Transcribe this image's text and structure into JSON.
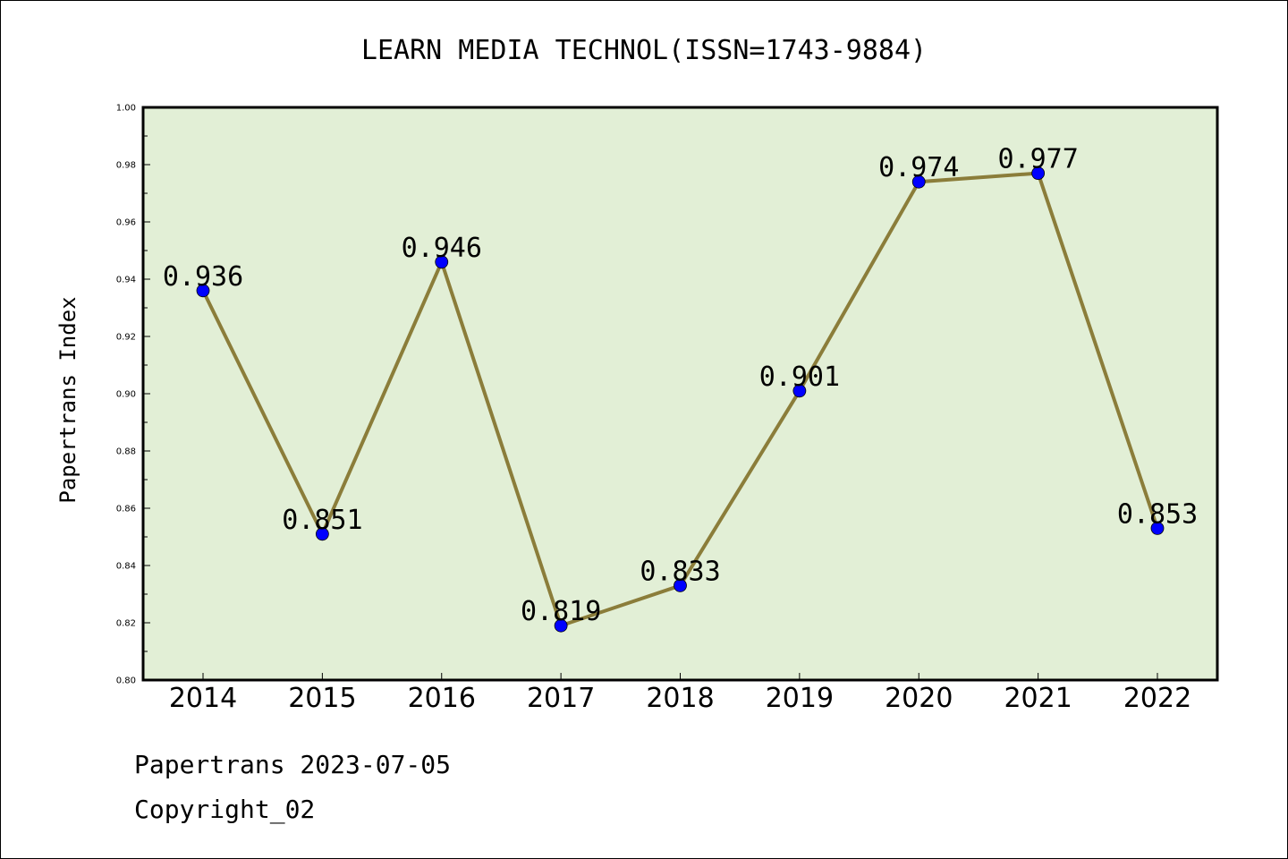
{
  "chart_data": {
    "type": "line",
    "title": "LEARN MEDIA TECHNOL(ISSN=1743-9884)",
    "xlabel": "",
    "ylabel": "Papertrans Index",
    "categories": [
      "2014",
      "2015",
      "2016",
      "2017",
      "2018",
      "2019",
      "2020",
      "2021",
      "2022"
    ],
    "series": [
      {
        "values": [
          0.936,
          0.851,
          0.946,
          0.819,
          0.833,
          0.901,
          0.974,
          0.977,
          0.853
        ],
        "labels": [
          "0.936",
          "0.851",
          "0.946",
          "0.819",
          "0.833",
          "0.901",
          "0.974",
          "0.977",
          "0.853"
        ]
      }
    ],
    "ylim": [
      0.8,
      1.0
    ],
    "yticks": [
      "0.80",
      "0.82",
      "0.84",
      "0.86",
      "0.88",
      "0.90",
      "0.92",
      "0.94",
      "0.96",
      "0.98",
      "1.00"
    ],
    "grid": false,
    "colors": {
      "plot_background": "#e2efd6",
      "line": "#8b7d3a",
      "marker": "#0000ff"
    }
  },
  "footer": {
    "line1": "Papertrans 2023-07-05",
    "line2": "Copyright_02"
  }
}
